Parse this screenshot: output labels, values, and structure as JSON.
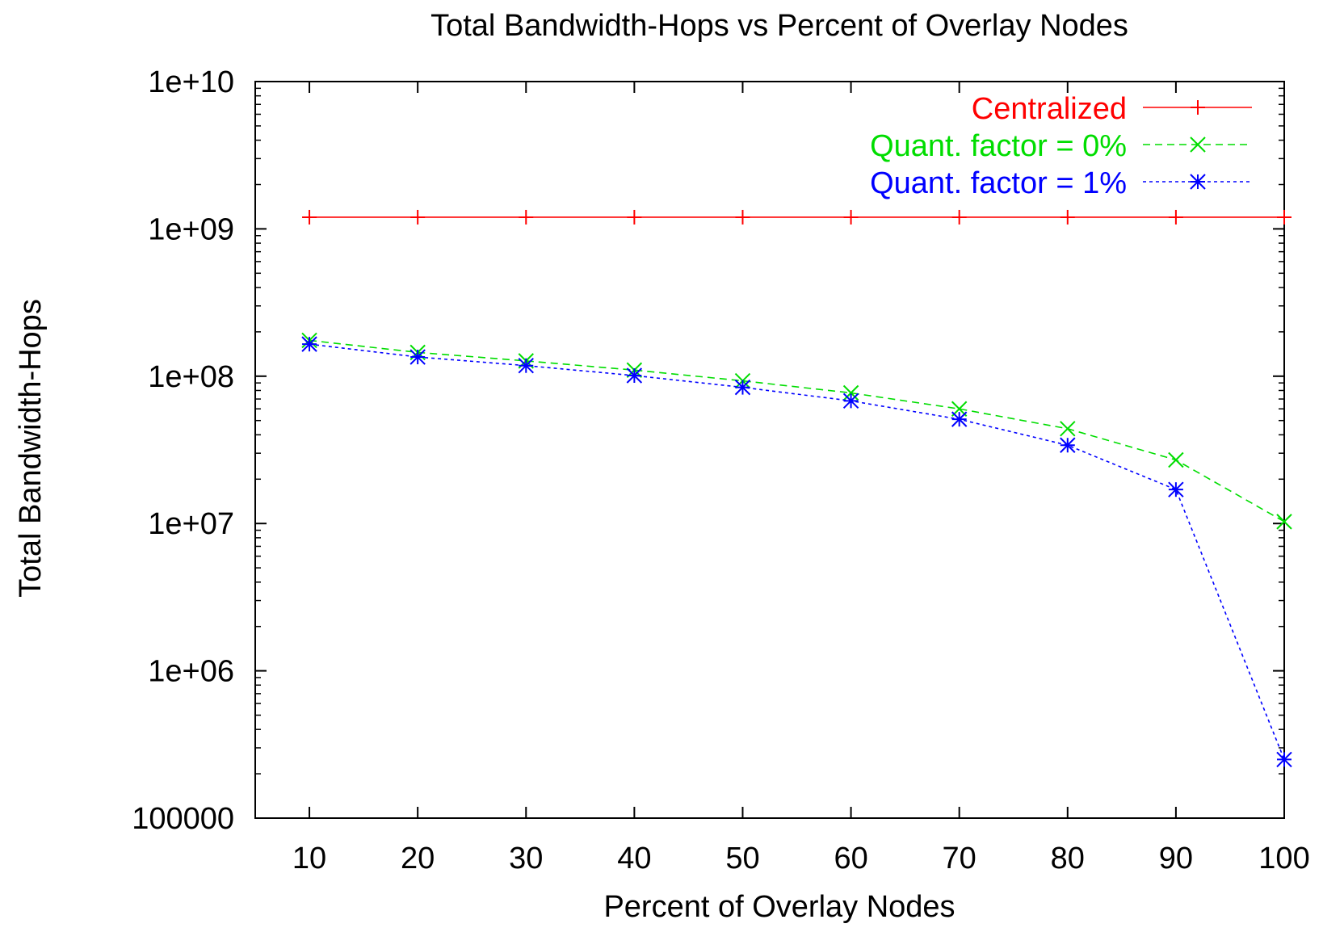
{
  "chart_data": {
    "type": "line",
    "title": "Total Bandwidth-Hops vs Percent of Overlay Nodes",
    "xlabel": "Percent of Overlay Nodes",
    "ylabel": "Total Bandwidth-Hops",
    "x_scale": "linear",
    "y_scale": "log",
    "xlim": [
      5,
      100
    ],
    "ylim": [
      100000,
      10000000000
    ],
    "x_ticks": [
      10,
      20,
      30,
      40,
      50,
      60,
      70,
      80,
      90,
      100
    ],
    "y_ticks": [
      100000,
      1000000,
      10000000,
      100000000,
      1000000000,
      10000000000
    ],
    "y_tick_labels": [
      "100000",
      "1e+06",
      "1e+07",
      "1e+08",
      "1e+09",
      "1e+10"
    ],
    "grid": false,
    "legend_position": "top-right",
    "x": [
      10,
      20,
      30,
      40,
      50,
      60,
      70,
      80,
      90,
      100
    ],
    "series": [
      {
        "name": "Centralized",
        "color": "#ff0000",
        "line_style": "solid",
        "marker": "plus",
        "values": [
          1200000000,
          1200000000,
          1200000000,
          1200000000,
          1200000000,
          1200000000,
          1200000000,
          1200000000,
          1200000000,
          1200000000
        ]
      },
      {
        "name": "Quant. factor = 0%",
        "color": "#00dd00",
        "line_style": "dashed",
        "marker": "cross",
        "values": [
          175000000,
          145000000,
          127000000,
          110000000,
          93000000,
          77000000,
          60000000,
          44000000,
          27000000,
          10300000
        ]
      },
      {
        "name": "Quant. factor = 1%",
        "color": "#0000ff",
        "line_style": "dotted",
        "marker": "star",
        "values": [
          165000000,
          135000000,
          118000000,
          101000000,
          84000000,
          68000000,
          51000000,
          34000000,
          17000000,
          250000
        ]
      }
    ]
  }
}
